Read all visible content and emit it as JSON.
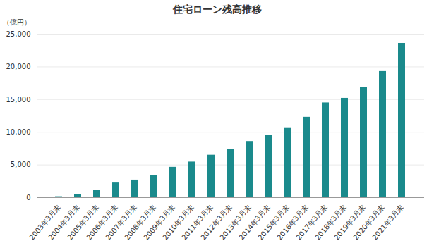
{
  "chart_data": {
    "type": "bar",
    "title": "住宅ローン残高推移",
    "y_label": "（億円）",
    "categories": [
      "2003年3月末",
      "2004年3月末",
      "2005年3月末",
      "2006年3月末",
      "2007年3月末",
      "2008年3月末",
      "2009年3月末",
      "2010年3月末",
      "2011年3月末",
      "2012年3月末",
      "2013年3月末",
      "2014年3月末",
      "2015年3月末",
      "2016年3月末",
      "2017年3月末",
      "2018年3月末",
      "2019年3月末",
      "2020年3月末",
      "2021年3月末"
    ],
    "values": [
      150,
      500,
      1150,
      2250,
      2700,
      3350,
      4650,
      5450,
      6500,
      7400,
      8600,
      9500,
      10700,
      12300,
      14500,
      15200,
      16900,
      19300,
      23600
    ],
    "color": "#1a8a8c",
    "ylim": [
      0,
      25000
    ],
    "yticks": [
      0,
      {
        "value": 5000,
        "label": "5,000"
      },
      {
        "value": 10000,
        "label": "10,000"
      },
      {
        "value": 15000,
        "label": "15,000"
      },
      {
        "value": 20000,
        "label": "20,000"
      },
      {
        "value": 25000,
        "label": "25,000"
      }
    ],
    "grid": true
  }
}
